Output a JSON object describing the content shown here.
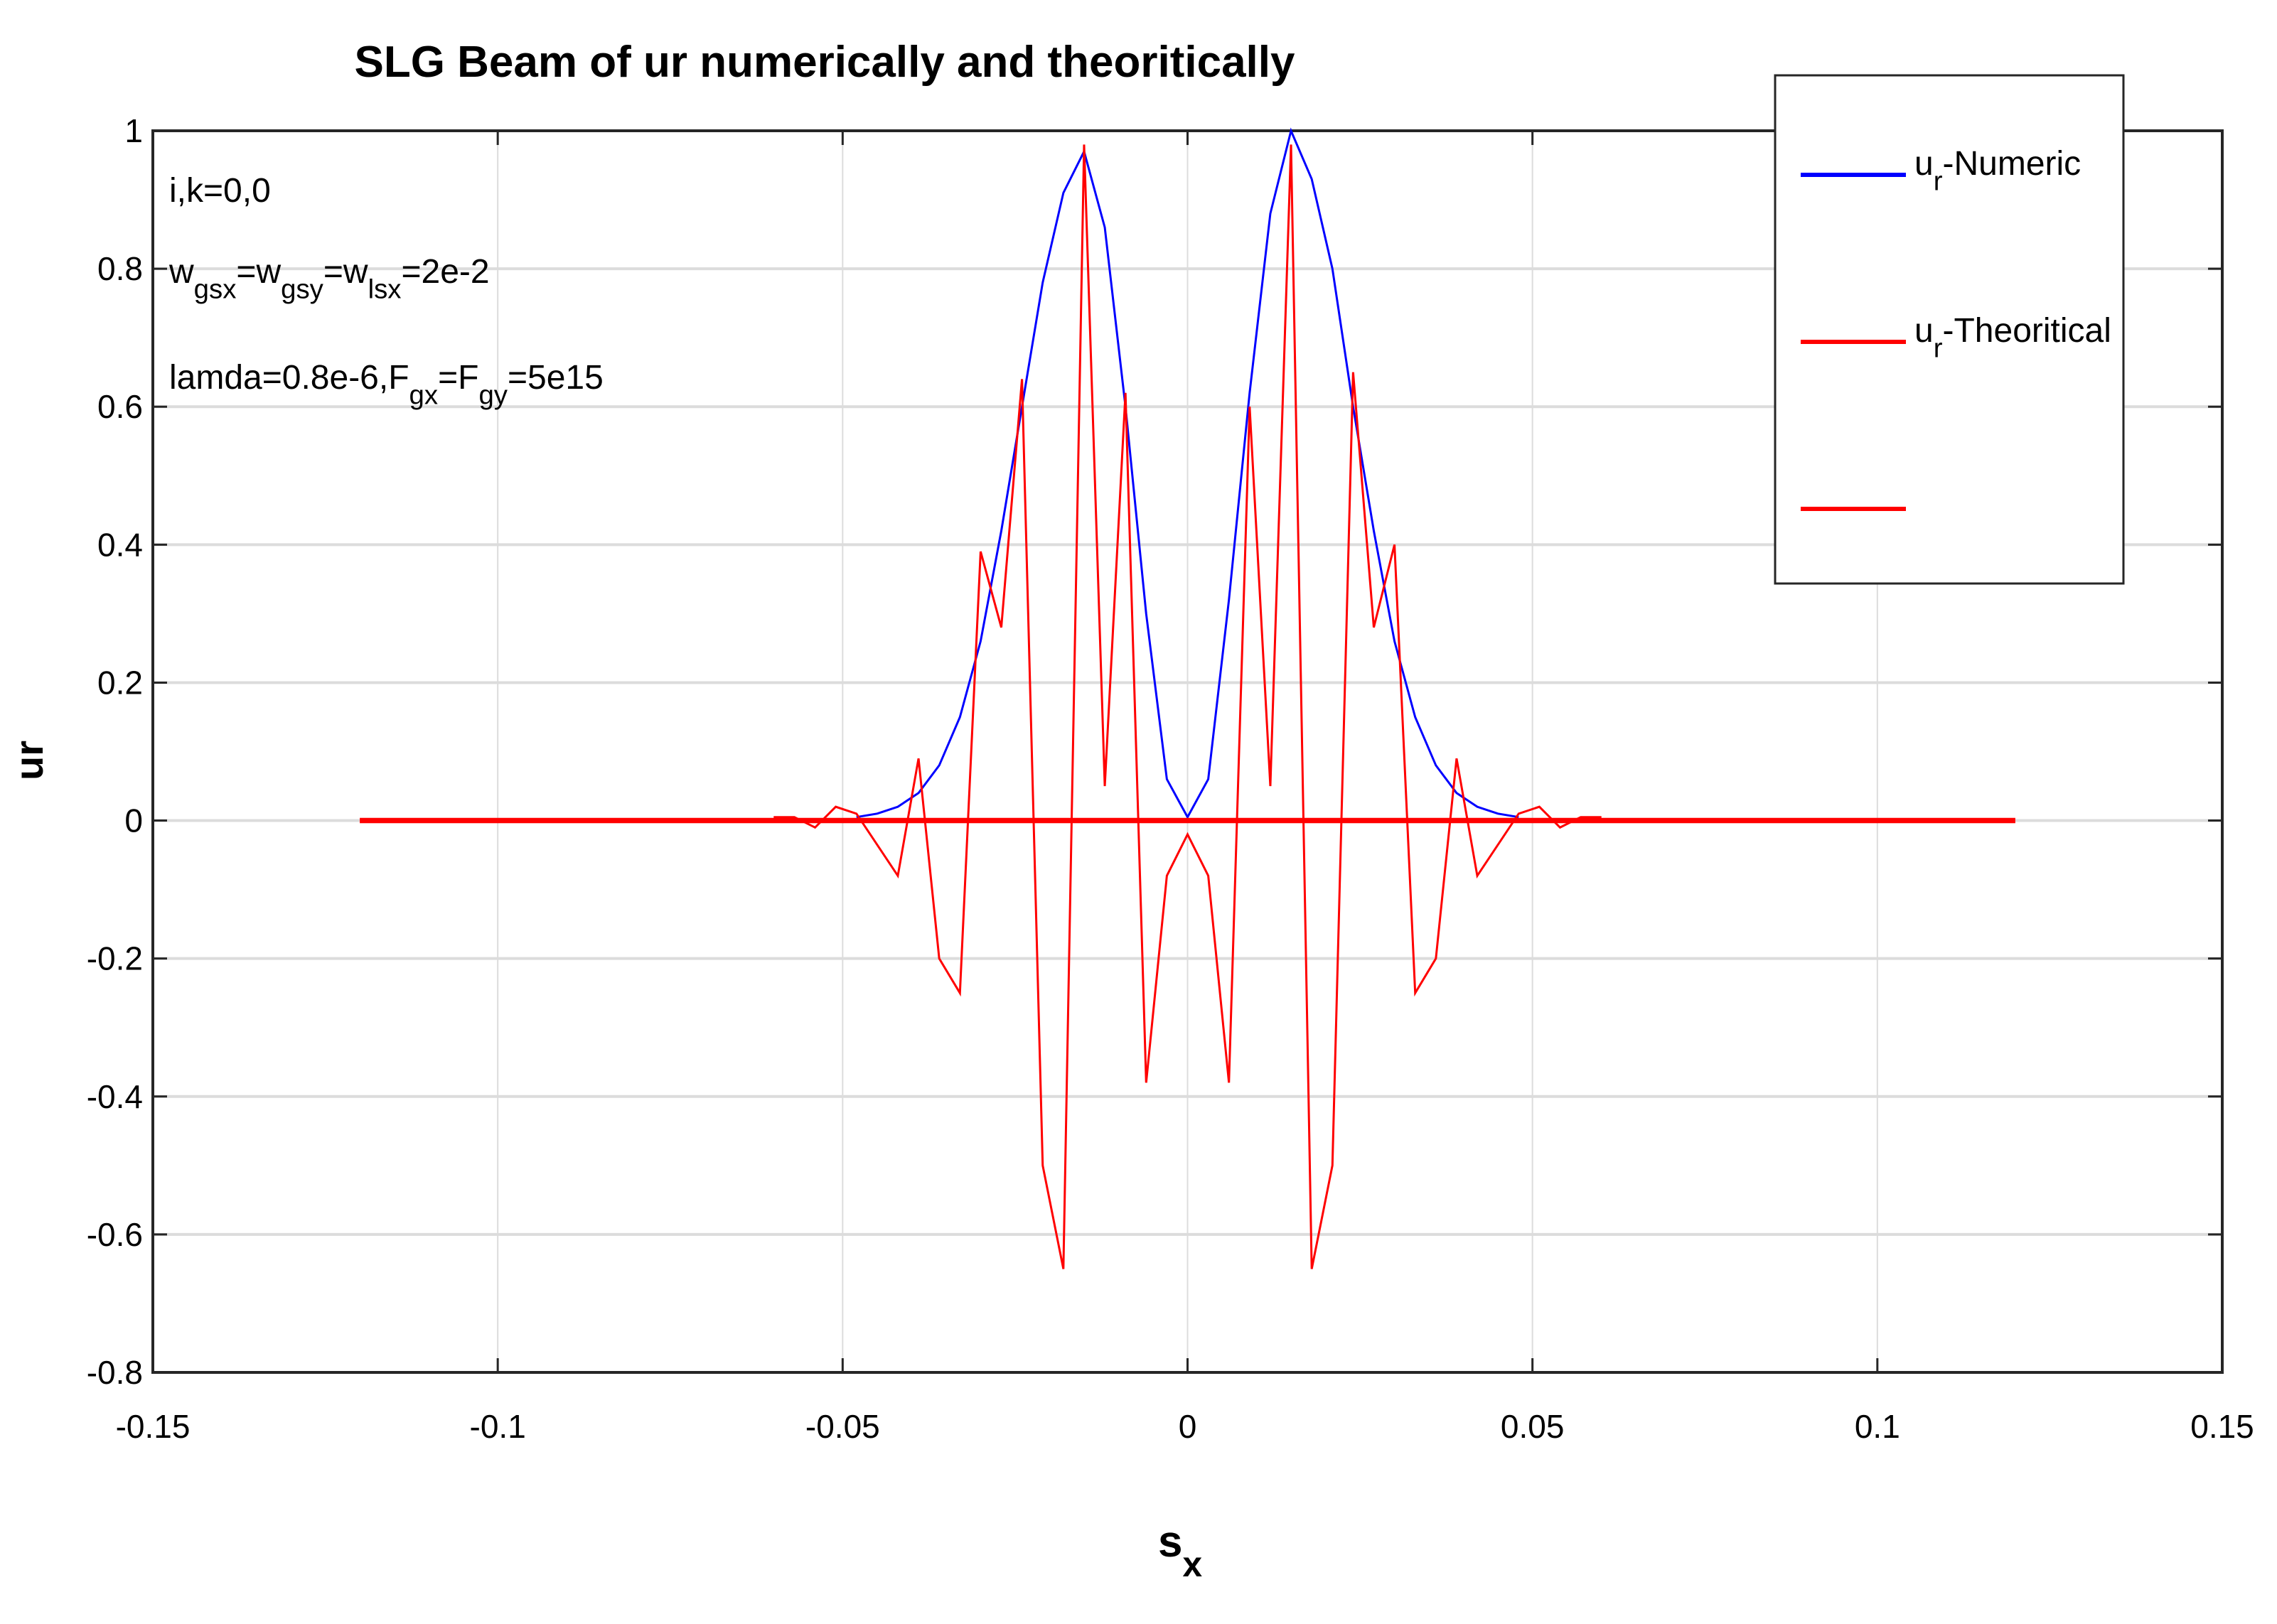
{
  "chart_data": {
    "type": "line",
    "title": "SLG Beam of ur numerically and theoritically",
    "x_label": [
      "s",
      "x"
    ],
    "y_label": "ur",
    "annotations": [
      [
        "i,k=0,0"
      ],
      [
        "w",
        "gsx",
        "=w",
        "gsy",
        "=w",
        "lsx",
        "=2e-2"
      ],
      [
        "lamda=0.8e-6,F",
        "gx",
        "=F",
        "gy",
        "=5e15"
      ]
    ],
    "xlim": [
      -0.15,
      0.15
    ],
    "xticks": [
      -0.15,
      -0.1,
      -0.05,
      0,
      0.05,
      0.1,
      0.15
    ],
    "ylim": [
      -0.8,
      1
    ],
    "yticks": [
      -0.8,
      -0.6,
      -0.4,
      -0.2,
      0,
      0.2,
      0.4,
      0.6,
      0.8,
      1
    ],
    "grid": true,
    "legend_position": "upper right",
    "series": [
      {
        "name": [
          "u",
          "r",
          "-Numeric"
        ],
        "color": "#0000ff",
        "width": 1,
        "x": [
          -0.048,
          -0.045,
          -0.042,
          -0.039,
          -0.036,
          -0.033,
          -0.03,
          -0.027,
          -0.024,
          -0.021,
          -0.018,
          -0.015,
          -0.012,
          -0.009,
          -0.006,
          -0.003,
          0,
          0.003,
          0.006,
          0.009,
          0.012,
          0.015,
          0.018,
          0.021,
          0.024,
          0.027,
          0.03,
          0.033,
          0.036,
          0.039,
          0.042,
          0.045,
          0.048
        ],
        "values": [
          0.005,
          0.01,
          0.02,
          0.04,
          0.08,
          0.15,
          0.26,
          0.42,
          0.6,
          0.78,
          0.91,
          0.97,
          0.86,
          0.6,
          0.3,
          0.06,
          0.005,
          0.06,
          0.32,
          0.62,
          0.88,
          1.0,
          0.93,
          0.8,
          0.6,
          0.42,
          0.26,
          0.15,
          0.08,
          0.04,
          0.02,
          0.01,
          0.005
        ]
      },
      {
        "name": [
          "u",
          "r",
          "-Theoritical"
        ],
        "color": "#ff0000",
        "width": 1,
        "x": [
          -0.06,
          -0.057,
          -0.054,
          -0.051,
          -0.048,
          -0.042,
          -0.039,
          -0.036,
          -0.033,
          -0.03,
          -0.027,
          -0.024,
          -0.021,
          -0.018,
          -0.015,
          -0.012,
          -0.009,
          -0.006,
          -0.003,
          0,
          0.003,
          0.006,
          0.009,
          0.012,
          0.015,
          0.018,
          0.021,
          0.024,
          0.027,
          0.03,
          0.033,
          0.036,
          0.039,
          0.042,
          0.048,
          0.051,
          0.054,
          0.057,
          0.06
        ],
        "values": [
          0.005,
          0.005,
          -0.01,
          0.02,
          0.01,
          -0.08,
          0.09,
          -0.2,
          -0.25,
          0.39,
          0.28,
          0.64,
          -0.5,
          -0.65,
          0.98,
          0.05,
          0.62,
          -0.38,
          -0.08,
          -0.02,
          -0.08,
          -0.38,
          0.6,
          0.05,
          0.98,
          -0.65,
          -0.5,
          0.65,
          0.28,
          0.4,
          -0.25,
          -0.2,
          0.09,
          -0.08,
          0.01,
          0.02,
          -0.01,
          0.005,
          0.005
        ]
      },
      {
        "name": null,
        "color": "#ff0000",
        "width": 2.5,
        "x": [
          -0.12,
          0.12
        ],
        "values": [
          0,
          0
        ]
      }
    ]
  }
}
